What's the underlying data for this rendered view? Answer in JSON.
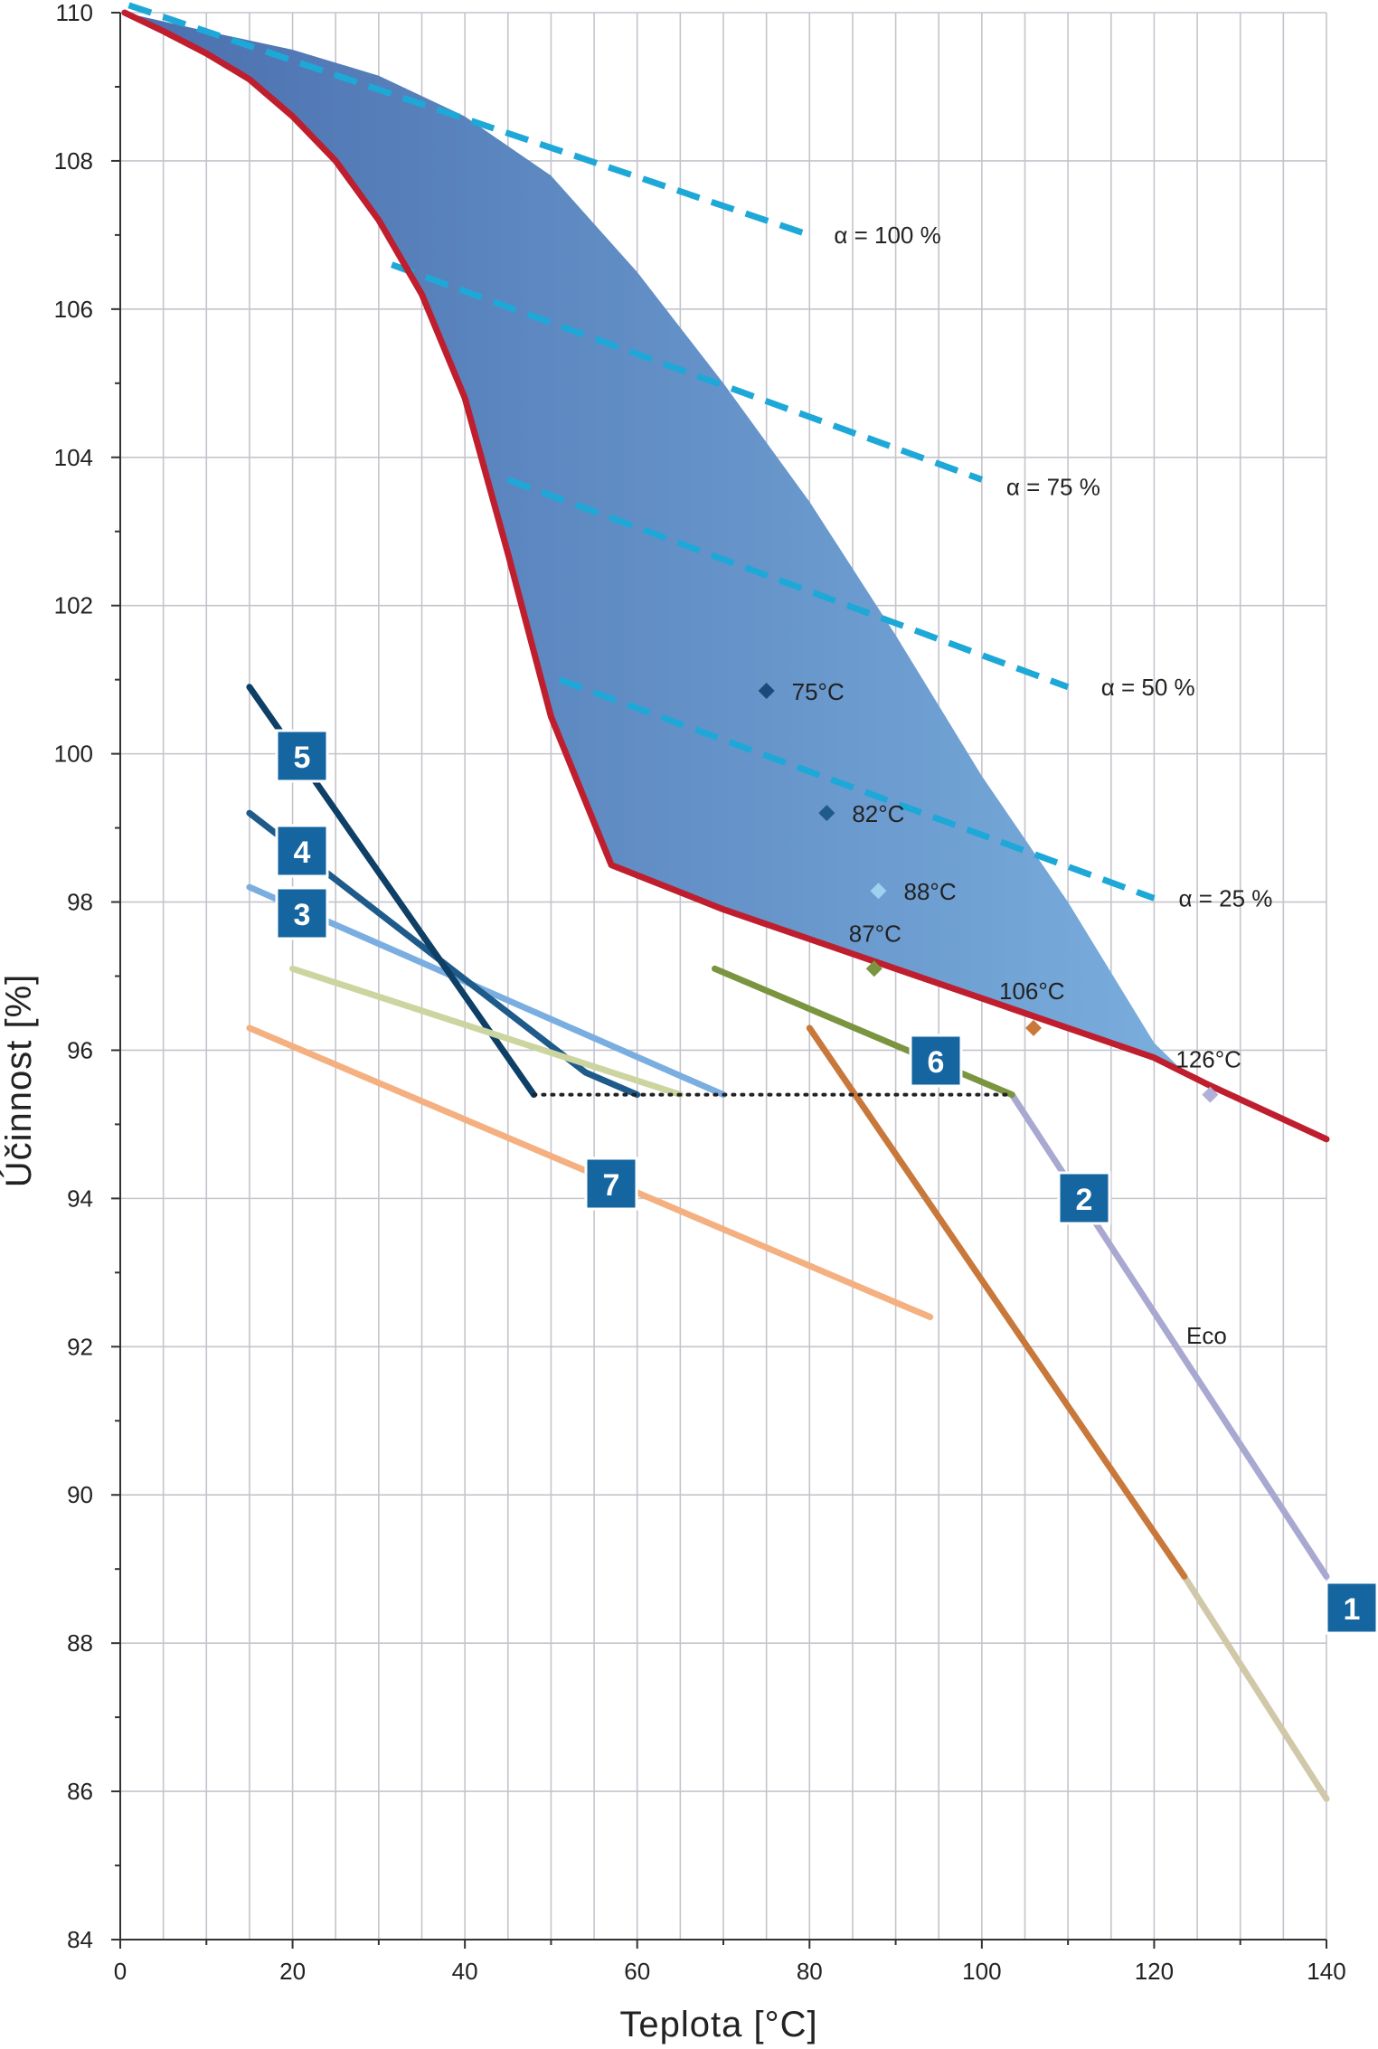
{
  "chart_data": {
    "type": "line",
    "title": "",
    "xlabel": "Teplota [°C]",
    "ylabel": "Účinnost [%]",
    "xlim": [
      0,
      140
    ],
    "ylim": [
      84,
      110
    ],
    "xticks": [
      0,
      20,
      40,
      60,
      80,
      100,
      120,
      140
    ],
    "yticks": [
      84,
      86,
      88,
      90,
      92,
      94,
      96,
      98,
      100,
      102,
      104,
      106,
      108,
      110
    ],
    "grid": true,
    "legend": "none",
    "colors": {
      "area_left": "#4a6fae",
      "area_right": "#7aaedd",
      "red_curve": "#be1e2d",
      "alpha_lines": "#1ea8d8",
      "badge": "#1565a0"
    },
    "region": {
      "lower": [
        [
          0.5,
          110
        ],
        [
          5,
          109.75
        ],
        [
          10,
          109.45
        ],
        [
          15,
          109.1
        ],
        [
          20,
          108.6
        ],
        [
          25,
          108
        ],
        [
          30,
          107.2
        ],
        [
          35,
          106.2
        ],
        [
          40,
          104.8
        ],
        [
          45,
          102.7
        ],
        [
          50,
          100.5
        ],
        [
          57,
          98.5
        ],
        [
          70,
          97.9
        ],
        [
          80,
          97.5
        ],
        [
          90,
          97.1
        ],
        [
          100,
          96.7
        ],
        [
          110,
          96.3
        ],
        [
          120,
          95.9
        ],
        [
          123.5,
          95.7
        ]
      ],
      "upper": [
        [
          0.5,
          110
        ],
        [
          10,
          109.75
        ],
        [
          20,
          109.5
        ],
        [
          30,
          109.15
        ],
        [
          40,
          108.6
        ],
        [
          50,
          107.8
        ],
        [
          60,
          106.5
        ],
        [
          70,
          105
        ],
        [
          80,
          103.4
        ],
        [
          90,
          101.6
        ],
        [
          100,
          99.7
        ],
        [
          110,
          98
        ],
        [
          120,
          96.1
        ],
        [
          123.5,
          95.7
        ]
      ]
    },
    "red_curve": [
      [
        0.5,
        110
      ],
      [
        5,
        109.75
      ],
      [
        10,
        109.45
      ],
      [
        15,
        109.1
      ],
      [
        20,
        108.6
      ],
      [
        25,
        108
      ],
      [
        30,
        107.2
      ],
      [
        35,
        106.2
      ],
      [
        40,
        104.8
      ],
      [
        45,
        102.7
      ],
      [
        50,
        100.5
      ],
      [
        57,
        98.5
      ],
      [
        70,
        97.9
      ],
      [
        80,
        97.5
      ],
      [
        90,
        97.1
      ],
      [
        100,
        96.7
      ],
      [
        110,
        96.3
      ],
      [
        120,
        95.9
      ],
      [
        126,
        95.55
      ],
      [
        140,
        94.8
      ]
    ],
    "alpha_lines": [
      {
        "label": "α = 100 %",
        "points": [
          [
            1,
            110.1
          ],
          [
            80,
            107
          ]
        ],
        "label_pos": [
          82,
          107
        ]
      },
      {
        "label": "α = 75 %",
        "points": [
          [
            31.5,
            106.6
          ],
          [
            100,
            103.7
          ]
        ],
        "label_pos": [
          102,
          103.6
        ]
      },
      {
        "label": "α = 50 %",
        "points": [
          [
            45,
            103.7
          ],
          [
            110,
            100.9
          ]
        ],
        "label_pos": [
          113,
          100.9
        ]
      },
      {
        "label": "α = 25 %",
        "points": [
          [
            51,
            101
          ],
          [
            120,
            98.05
          ]
        ],
        "label_pos": [
          122,
          98.05
        ]
      }
    ],
    "series": [
      {
        "id": "1",
        "color": "#a8a8d0",
        "points": [
          [
            103.5,
            95.4
          ],
          [
            140,
            88.9
          ]
        ]
      },
      {
        "id": "1b",
        "color": "#d0c8a8",
        "points": [
          [
            123.5,
            88.9
          ],
          [
            140,
            85.9
          ]
        ]
      },
      {
        "id": "2",
        "color": "#c8783a",
        "points": [
          [
            80,
            96.3
          ],
          [
            123.5,
            88.9
          ]
        ]
      },
      {
        "id": "3",
        "color": "#7aaee0",
        "points": [
          [
            15,
            98.2
          ],
          [
            70,
            95.4
          ]
        ]
      },
      {
        "id": "4",
        "color": "#1e5a8a",
        "points": [
          [
            15,
            99.2
          ],
          [
            54,
            95.7
          ],
          [
            60,
            95.4
          ]
        ]
      },
      {
        "id": "5",
        "color": "#0e3f66",
        "points": [
          [
            15,
            100.9
          ],
          [
            48,
            95.4
          ]
        ]
      },
      {
        "id": "6",
        "color": "#7a9440",
        "points": [
          [
            69,
            97.1
          ],
          [
            103.5,
            95.4
          ]
        ]
      },
      {
        "id": "7",
        "color": "#f4b080",
        "points": [
          [
            15,
            96.3
          ],
          [
            94,
            92.4
          ]
        ]
      },
      {
        "id": "8",
        "color": "#ccd4a0",
        "points": [
          [
            20,
            97.1
          ],
          [
            65,
            95.4
          ]
        ]
      }
    ],
    "dotted_line": [
      [
        48,
        95.4
      ],
      [
        103.5,
        95.4
      ]
    ],
    "markers": [
      {
        "label": "75°C",
        "x": 75,
        "y": 100.85,
        "color": "#1a4a7a"
      },
      {
        "label": "82°C",
        "x": 82,
        "y": 99.2,
        "color": "#1e5a8a"
      },
      {
        "label": "88°C",
        "x": 88,
        "y": 98.15,
        "color": "#9ed0f0"
      },
      {
        "label": "87°C",
        "x": 87.5,
        "y": 97.1,
        "color": "#7a9440"
      },
      {
        "label": "106°C",
        "x": 106,
        "y": 96.3,
        "color": "#c8783a"
      },
      {
        "label": "126°C",
        "x": 126.5,
        "y": 95.4,
        "color": "#b0b0d8"
      }
    ],
    "badges": [
      "1",
      "2",
      "3",
      "4",
      "5",
      "6",
      "7"
    ],
    "annotations": [
      "Eco"
    ]
  }
}
